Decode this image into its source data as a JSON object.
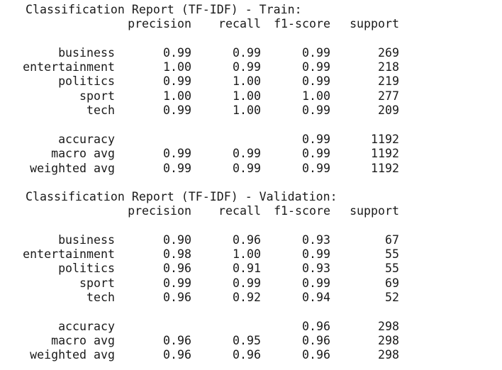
{
  "headers": {
    "precision": "precision",
    "recall": "recall",
    "f1": "f1-score",
    "support": "support"
  },
  "reports": [
    {
      "title": "Classification Report (TF-IDF) - Train:",
      "classes": [
        {
          "label": "business",
          "precision": "0.99",
          "recall": "0.99",
          "f1": "0.99",
          "support": "269"
        },
        {
          "label": "entertainment",
          "precision": "1.00",
          "recall": "0.99",
          "f1": "0.99",
          "support": "218"
        },
        {
          "label": "politics",
          "precision": "0.99",
          "recall": "1.00",
          "f1": "0.99",
          "support": "219"
        },
        {
          "label": "sport",
          "precision": "1.00",
          "recall": "1.00",
          "f1": "1.00",
          "support": "277"
        },
        {
          "label": "tech",
          "precision": "0.99",
          "recall": "1.00",
          "f1": "0.99",
          "support": "209"
        }
      ],
      "summary": [
        {
          "label": "accuracy",
          "precision": "",
          "recall": "",
          "f1": "0.99",
          "support": "1192"
        },
        {
          "label": "macro avg",
          "precision": "0.99",
          "recall": "0.99",
          "f1": "0.99",
          "support": "1192"
        },
        {
          "label": "weighted avg",
          "precision": "0.99",
          "recall": "0.99",
          "f1": "0.99",
          "support": "1192"
        }
      ]
    },
    {
      "title": "Classification Report (TF-IDF) - Validation:",
      "classes": [
        {
          "label": "business",
          "precision": "0.90",
          "recall": "0.96",
          "f1": "0.93",
          "support": "67"
        },
        {
          "label": "entertainment",
          "precision": "0.98",
          "recall": "1.00",
          "f1": "0.99",
          "support": "55"
        },
        {
          "label": "politics",
          "precision": "0.96",
          "recall": "0.91",
          "f1": "0.93",
          "support": "55"
        },
        {
          "label": "sport",
          "precision": "0.99",
          "recall": "0.99",
          "f1": "0.99",
          "support": "69"
        },
        {
          "label": "tech",
          "precision": "0.96",
          "recall": "0.92",
          "f1": "0.94",
          "support": "52"
        }
      ],
      "summary": [
        {
          "label": "accuracy",
          "precision": "",
          "recall": "",
          "f1": "0.96",
          "support": "298"
        },
        {
          "label": "macro avg",
          "precision": "0.96",
          "recall": "0.95",
          "f1": "0.96",
          "support": "298"
        },
        {
          "label": "weighted avg",
          "precision": "0.96",
          "recall": "0.96",
          "f1": "0.96",
          "support": "298"
        }
      ]
    }
  ]
}
